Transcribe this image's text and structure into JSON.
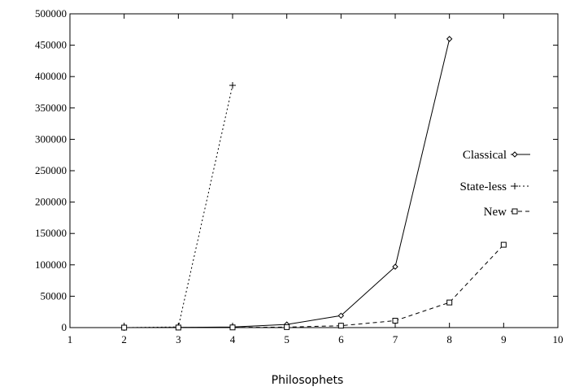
{
  "chart_data": {
    "type": "line",
    "xlabel": "Philosophets",
    "ylabel": "",
    "title": "",
    "xlim": [
      1,
      10
    ],
    "ylim": [
      0,
      500000
    ],
    "xticks": [
      "1",
      "2",
      "3",
      "4",
      "5",
      "6",
      "7",
      "8",
      "9",
      "10"
    ],
    "yticks": [
      "0",
      "50000",
      "100000",
      "150000",
      "200000",
      "250000",
      "300000",
      "350000",
      "400000",
      "450000",
      "500000"
    ],
    "grid": false,
    "legend_position": "right",
    "series": [
      {
        "name": "Classical",
        "style": "solid",
        "marker": "diamond",
        "color": "#000000",
        "x": [
          2,
          3,
          4,
          5,
          6,
          7,
          8
        ],
        "y": [
          0,
          200,
          1000,
          5000,
          19000,
          97000,
          460000
        ]
      },
      {
        "name": "State-less",
        "style": "dotted",
        "marker": "plus",
        "color": "#000000",
        "x": [
          2,
          3,
          4
        ],
        "y": [
          0,
          1000,
          386000
        ]
      },
      {
        "name": "New",
        "style": "dashed",
        "marker": "square",
        "color": "#000000",
        "x": [
          2,
          3,
          4,
          5,
          6,
          7,
          8,
          9
        ],
        "y": [
          0,
          100,
          300,
          800,
          3000,
          11000,
          40000,
          132000
        ]
      }
    ]
  }
}
